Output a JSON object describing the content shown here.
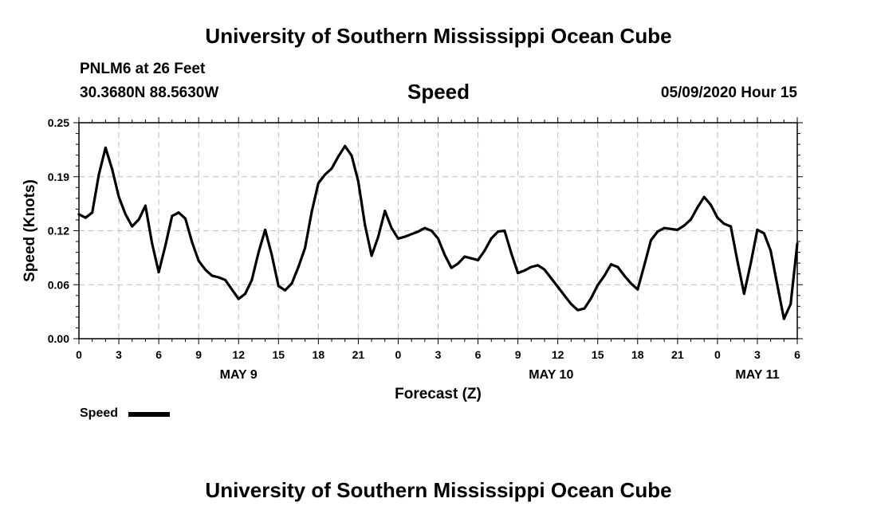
{
  "header": {
    "title": "University of Southern Mississippi Ocean Cube",
    "station": "PNLM6 at 26 Feet",
    "coords": "30.3680N 88.5630W",
    "variable": "Speed",
    "datetime": "05/09/2020 Hour 15"
  },
  "footer": {
    "title": "University of Southern Mississippi Ocean Cube"
  },
  "legend": {
    "label": "Speed"
  },
  "chart_data": {
    "type": "line",
    "title": "Speed",
    "xlabel": "Forecast (Z)",
    "ylabel": "Speed (Knots)",
    "ylim": [
      0,
      0.25
    ],
    "yticks": [
      "0.00",
      "0.06",
      "0.12",
      "0.19",
      "0.25"
    ],
    "ytick_values": [
      0,
      0.0625,
      0.125,
      0.1875,
      0.25
    ],
    "xlim": [
      0,
      54
    ],
    "xticks": [
      0,
      3,
      6,
      9,
      12,
      15,
      18,
      21,
      24,
      27,
      30,
      33,
      36,
      39,
      42,
      45,
      48,
      51,
      54
    ],
    "xtick_labels": [
      "0",
      "3",
      "6",
      "9",
      "12",
      "15",
      "18",
      "21",
      "0",
      "3",
      "6",
      "9",
      "12",
      "15",
      "18",
      "21",
      "0",
      "3",
      "6"
    ],
    "date_labels": [
      {
        "label": "MAY 9",
        "x": 12
      },
      {
        "label": "MAY 10",
        "x": 35.5
      },
      {
        "label": "MAY 11",
        "x": 51
      }
    ],
    "grid": true,
    "legend_position": "bottom-left",
    "series": [
      {
        "name": "Speed",
        "color": "#000000",
        "x": [
          0,
          0.5,
          1,
          1.5,
          2,
          2.5,
          3,
          3.5,
          4,
          4.5,
          5,
          5.5,
          6,
          6.5,
          7,
          7.5,
          8,
          8.5,
          9,
          9.5,
          10,
          10.5,
          11,
          11.5,
          12,
          12.5,
          13,
          13.5,
          14,
          14.5,
          15,
          15.5,
          16,
          16.5,
          17,
          17.5,
          18,
          18.5,
          19,
          19.5,
          20,
          20.5,
          21,
          21.5,
          22,
          22.5,
          23,
          23.5,
          24,
          24.5,
          25,
          25.5,
          26,
          26.5,
          27,
          27.5,
          28,
          28.5,
          29,
          29.5,
          30,
          30.5,
          31,
          31.5,
          32,
          32.5,
          33,
          33.5,
          34,
          34.5,
          35,
          35.5,
          36,
          36.5,
          37,
          37.5,
          38,
          38.5,
          39,
          39.5,
          40,
          40.5,
          41,
          41.5,
          42,
          42.5,
          43,
          43.5,
          44,
          44.5,
          45,
          45.5,
          46,
          46.5,
          47,
          47.5,
          48,
          48.5,
          49,
          49.5,
          50,
          50.5,
          51,
          51.5,
          52,
          52.5,
          53,
          53.5,
          54
        ],
        "values": [
          0.144,
          0.14,
          0.146,
          0.19,
          0.221,
          0.196,
          0.164,
          0.144,
          0.13,
          0.138,
          0.154,
          0.11,
          0.077,
          0.108,
          0.142,
          0.146,
          0.139,
          0.112,
          0.09,
          0.08,
          0.073,
          0.071,
          0.068,
          0.057,
          0.046,
          0.052,
          0.068,
          0.1,
          0.126,
          0.097,
          0.061,
          0.056,
          0.064,
          0.083,
          0.105,
          0.147,
          0.18,
          0.19,
          0.197,
          0.211,
          0.223,
          0.212,
          0.182,
          0.132,
          0.096,
          0.118,
          0.148,
          0.128,
          0.116,
          0.118,
          0.121,
          0.124,
          0.128,
          0.125,
          0.116,
          0.097,
          0.082,
          0.087,
          0.095,
          0.093,
          0.091,
          0.102,
          0.116,
          0.124,
          0.125,
          0.099,
          0.076,
          0.079,
          0.083,
          0.085,
          0.08,
          0.07,
          0.06,
          0.05,
          0.04,
          0.033,
          0.035,
          0.047,
          0.062,
          0.073,
          0.086,
          0.083,
          0.073,
          0.064,
          0.057,
          0.085,
          0.114,
          0.124,
          0.128,
          0.127,
          0.126,
          0.131,
          0.138,
          0.152,
          0.164,
          0.155,
          0.14,
          0.133,
          0.13,
          0.09,
          0.052,
          0.087,
          0.126,
          0.122,
          0.102,
          0.062,
          0.023,
          0.04,
          0.11
        ]
      }
    ]
  }
}
